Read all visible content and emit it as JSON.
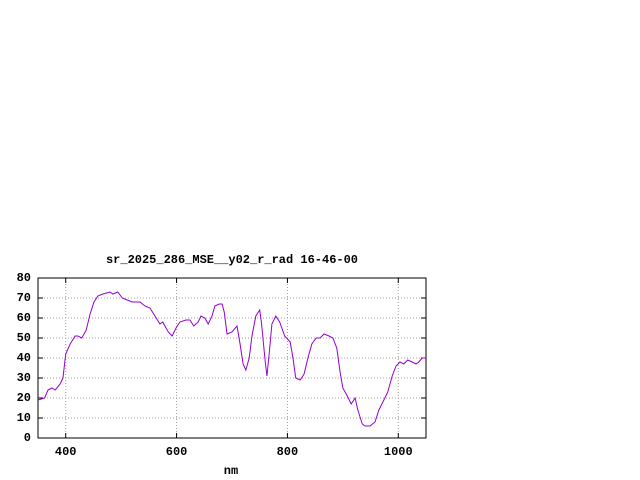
{
  "chart_data": {
    "type": "line",
    "title": "sr_2025_286_MSE__y02_r_rad 16-46-00",
    "x_label": "nm",
    "x": [
      350,
      362,
      368,
      375,
      381,
      390,
      395,
      400,
      408,
      417,
      422,
      429,
      437,
      444,
      451,
      458,
      467,
      480,
      485,
      494,
      502,
      511,
      520,
      534,
      543,
      552,
      561,
      570,
      575,
      585,
      592,
      599,
      606,
      617,
      624,
      631,
      639,
      644,
      651,
      657,
      664,
      669,
      677,
      682,
      686,
      691,
      700,
      709,
      714,
      720,
      725,
      731,
      736,
      743,
      750,
      753,
      760,
      763,
      767,
      772,
      779,
      786,
      795,
      805,
      810,
      815,
      823,
      830,
      837,
      844,
      852,
      859,
      866,
      875,
      882,
      889,
      895,
      900,
      908,
      915,
      922,
      927,
      935,
      940,
      949,
      958,
      965,
      974,
      981,
      989,
      996,
      1003,
      1010,
      1017,
      1025,
      1032,
      1037,
      1043,
      1050
    ],
    "series": [
      {
        "color": "#9400d3",
        "values": [
          19,
          20,
          24,
          25,
          24,
          27,
          30,
          42,
          47,
          51,
          51,
          50,
          54,
          62,
          68,
          71,
          72,
          73,
          72,
          73,
          70,
          69,
          68,
          68,
          66,
          65,
          61,
          57,
          58,
          53,
          51,
          55,
          58,
          59,
          59,
          56,
          58,
          61,
          60,
          57,
          61,
          66,
          67,
          67,
          63,
          52,
          53,
          56,
          48,
          37,
          34,
          40,
          51,
          61,
          64,
          58,
          38,
          31,
          42,
          57,
          61,
          58,
          51,
          48,
          40,
          30,
          29,
          32,
          40,
          47,
          50,
          50,
          52,
          51,
          50,
          45,
          33,
          25,
          21,
          17,
          20,
          14,
          7,
          6,
          6,
          8,
          14,
          19,
          23,
          31,
          36,
          38,
          37,
          39,
          38,
          37,
          38,
          40,
          40
        ]
      }
    ],
    "xlim": [
      350,
      1050
    ],
    "ylim": [
      0,
      80
    ],
    "xticks": [
      400,
      600,
      800,
      1000
    ],
    "yticks": [
      0,
      10,
      20,
      30,
      40,
      50,
      60,
      70,
      80
    ],
    "grid": true
  }
}
